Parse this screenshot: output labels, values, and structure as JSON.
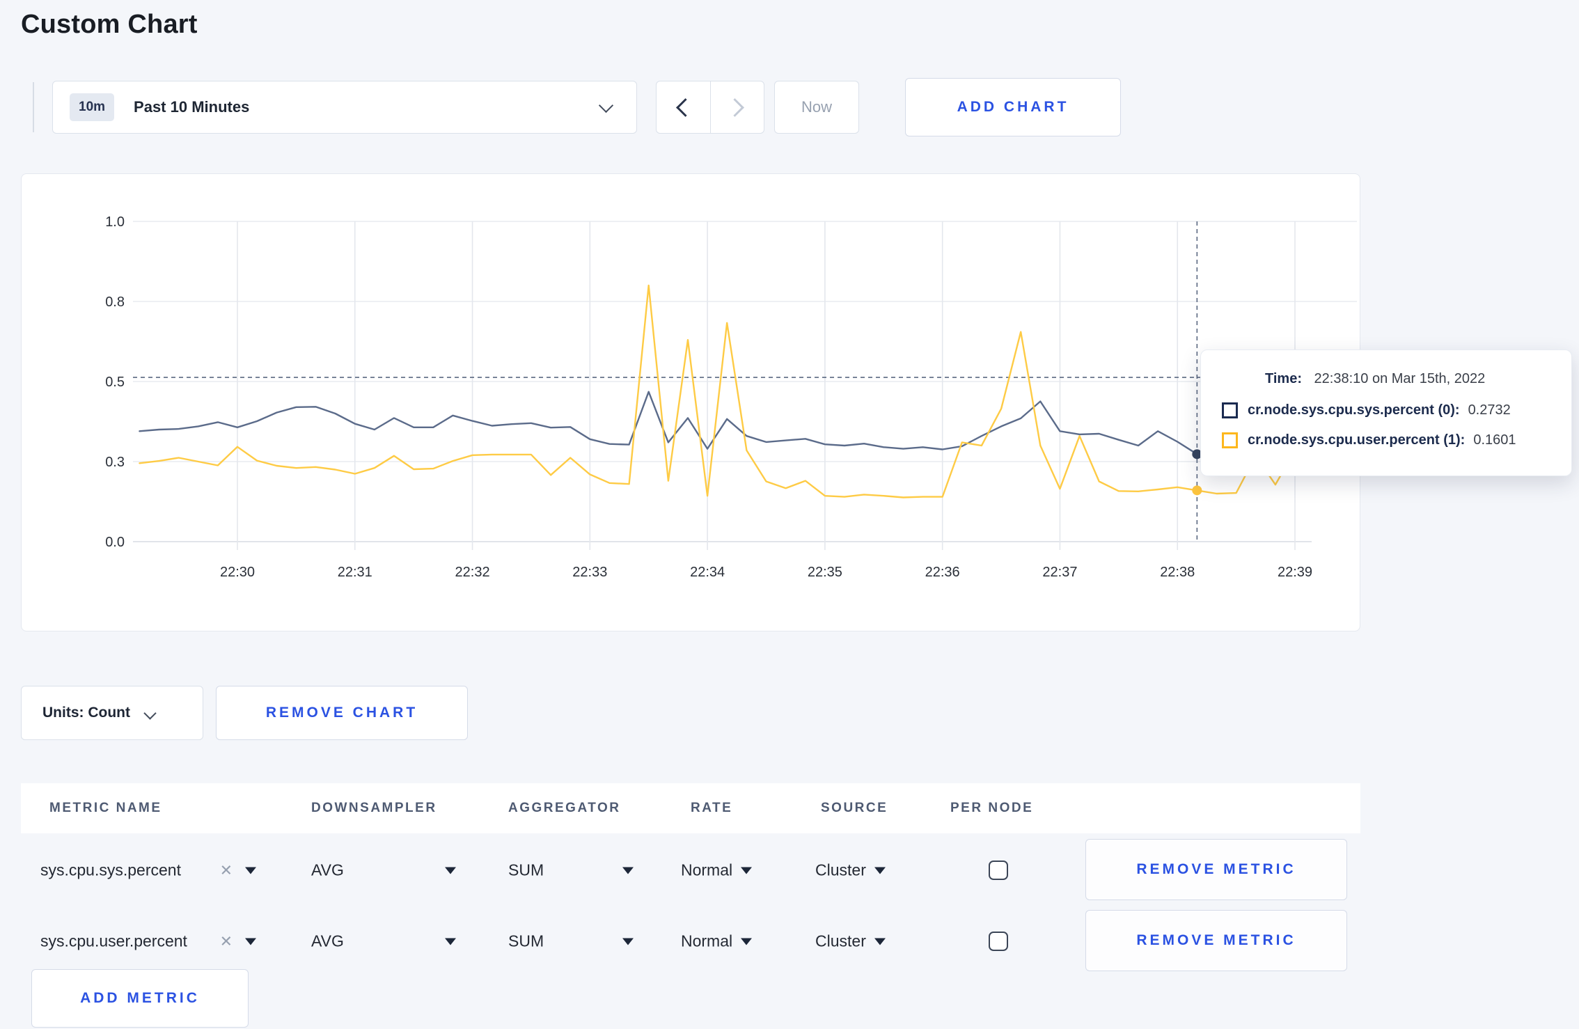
{
  "page": {
    "title": "Custom Chart"
  },
  "colors": {
    "action_blue": "#2b52e2",
    "series_sys_line": "#5b6b8a",
    "series_user_line": "#fecb45",
    "sys_dot": "#36455f",
    "user_dot": "#fdc53e",
    "crosshair": "#5a6880",
    "grid": "#e8ebf0",
    "axis_text": "#2a2f38"
  },
  "toolbar": {
    "time_badge": "10m",
    "time_range_label": "Past 10 Minutes",
    "now_label": "Now",
    "add_chart_label": "ADD CHART"
  },
  "chart_data": {
    "type": "line",
    "title": "",
    "xlabel": "",
    "ylabel": "",
    "x_start_time": "22:29:10",
    "x_step_seconds": 10,
    "x_tick_labels": [
      "22:30",
      "22:31",
      "22:32",
      "22:33",
      "22:34",
      "22:35",
      "22:36",
      "22:37",
      "22:38",
      "22:39"
    ],
    "x_tick_seconds": [
      60,
      120,
      180,
      240,
      300,
      360,
      420,
      480,
      540,
      600
    ],
    "ylim": [
      0,
      1
    ],
    "y_tick_values": [
      0,
      0.25,
      0.5,
      0.75,
      1.0
    ],
    "y_tick_labels": [
      "0.0",
      "0.3",
      "0.5",
      "0.8",
      "1.0"
    ],
    "grid": true,
    "legend_position": "tooltip",
    "series": [
      {
        "name": "cr.node.sys.cpu.sys.percent",
        "values": [
          0.345,
          0.35,
          0.352,
          0.36,
          0.373,
          0.357,
          0.376,
          0.403,
          0.42,
          0.421,
          0.4,
          0.368,
          0.35,
          0.386,
          0.357,
          0.357,
          0.394,
          0.377,
          0.362,
          0.367,
          0.37,
          0.356,
          0.358,
          0.32,
          0.305,
          0.303,
          0.468,
          0.31,
          0.386,
          0.29,
          0.383,
          0.33,
          0.311,
          0.316,
          0.321,
          0.304,
          0.3,
          0.306,
          0.295,
          0.29,
          0.295,
          0.288,
          0.298,
          0.33,
          0.36,
          0.385,
          0.438,
          0.345,
          0.335,
          0.337,
          0.318,
          0.3,
          0.345,
          0.312,
          0.2732,
          0.3,
          0.309,
          0.296,
          0.306,
          0.3,
          0.311,
          0.303
        ]
      },
      {
        "name": "cr.node.sys.cpu.user.percent",
        "values": [
          0.245,
          0.252,
          0.262,
          0.25,
          0.238,
          0.296,
          0.253,
          0.237,
          0.23,
          0.233,
          0.225,
          0.212,
          0.23,
          0.268,
          0.226,
          0.228,
          0.252,
          0.27,
          0.272,
          0.272,
          0.272,
          0.208,
          0.262,
          0.21,
          0.183,
          0.18,
          0.8,
          0.19,
          0.63,
          0.143,
          0.683,
          0.285,
          0.188,
          0.167,
          0.19,
          0.143,
          0.14,
          0.147,
          0.143,
          0.138,
          0.14,
          0.14,
          0.31,
          0.3,
          0.415,
          0.655,
          0.3,
          0.165,
          0.33,
          0.188,
          0.158,
          0.157,
          0.163,
          0.17,
          0.1601,
          0.15,
          0.152,
          0.268,
          0.178,
          0.285,
          0.262,
          0.27
        ]
      }
    ],
    "crosshair": {
      "seconds": 550,
      "time": "22:38:10",
      "horizontal_value": 0.513
    },
    "hover_points": [
      {
        "series_index": 0,
        "value": 0.2732
      },
      {
        "series_index": 1,
        "value": 0.1601
      }
    ]
  },
  "tooltip": {
    "time_label": "Time:",
    "time_value": "22:38:10 on Mar 15th, 2022",
    "entries": [
      {
        "name": "cr.node.sys.cpu.sys.percent (0):",
        "value": "0.2732",
        "swatch_color": "#1b2b50"
      },
      {
        "name": "cr.node.sys.cpu.user.percent (1):",
        "value": "0.1601",
        "swatch_color": "#fdb71d"
      }
    ]
  },
  "units_bar": {
    "units_label": "Units: Count",
    "remove_chart_label": "REMOVE CHART"
  },
  "metrics_table": {
    "headers": [
      "METRIC NAME",
      "DOWNSAMPLER",
      "AGGREGATOR",
      "RATE",
      "SOURCE",
      "PER NODE"
    ],
    "rows": [
      {
        "metric": "sys.cpu.sys.percent",
        "clear": "✕",
        "downsampler": "AVG",
        "aggregator": "SUM",
        "rate": "Normal",
        "source": "Cluster",
        "per_node": false,
        "remove_label": "REMOVE METRIC"
      },
      {
        "metric": "sys.cpu.user.percent",
        "clear": "✕",
        "downsampler": "AVG",
        "aggregator": "SUM",
        "rate": "Normal",
        "source": "Cluster",
        "per_node": false,
        "remove_label": "REMOVE METRIC"
      }
    ],
    "add_metric_label": "ADD METRIC"
  }
}
